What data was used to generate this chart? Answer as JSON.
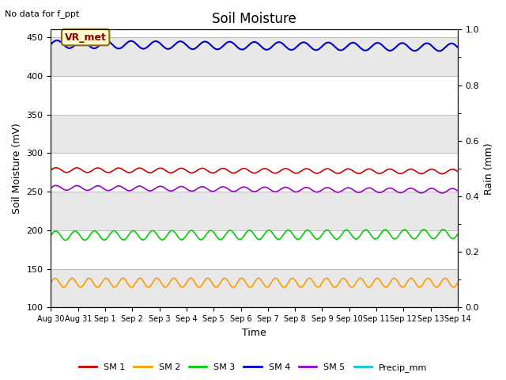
{
  "title": "Soil Moisture",
  "top_left_text": "No data for f_ppt",
  "annotation_text": "VR_met",
  "xlabel": "Time",
  "ylabel_left": "Soil Moisture (mV)",
  "ylabel_right": "Rain (mm)",
  "ylim_left": [
    100,
    460
  ],
  "ylim_right": [
    0.0,
    1.0
  ],
  "yticks_left": [
    100,
    150,
    200,
    250,
    300,
    350,
    400,
    450
  ],
  "yticks_right": [
    0.0,
    0.2,
    0.4,
    0.6,
    0.8,
    1.0
  ],
  "n_points": 336,
  "bg_color": "#ffffff",
  "plot_bg_bands": [
    [
      100,
      150,
      "#e8e8e8"
    ],
    [
      150,
      200,
      "#ffffff"
    ],
    [
      200,
      250,
      "#e8e8e8"
    ],
    [
      250,
      300,
      "#ffffff"
    ],
    [
      300,
      350,
      "#e8e8e8"
    ],
    [
      350,
      400,
      "#ffffff"
    ],
    [
      400,
      450,
      "#e8e8e8"
    ],
    [
      450,
      460,
      "#ffffff"
    ]
  ],
  "grid_color": "#cccccc",
  "legend_labels": [
    "SM 1",
    "SM 2",
    "SM 3",
    "SM 4",
    "SM 5",
    "Precip_mm"
  ],
  "legend_colors": [
    "#cc0000",
    "#ff9900",
    "#00cc00",
    "#0000cc",
    "#9900cc",
    "#00cccc"
  ],
  "tick_labels": [
    "Aug 30",
    "Aug 31",
    "Sep 1",
    "Sep 2",
    "Sep 3",
    "Sep 4",
    "Sep 5",
    "Sep 6",
    "Sep 7",
    "Sep 8",
    "Sep 9",
    "Sep 10",
    "Sep 11",
    "Sep 12",
    "Sep 13",
    "Sep 14"
  ]
}
